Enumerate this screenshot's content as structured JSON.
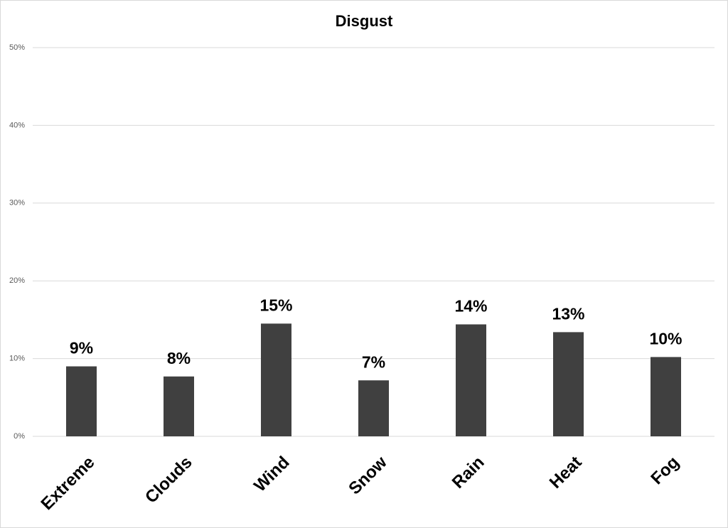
{
  "chart_data": {
    "type": "bar",
    "title": "Disgust",
    "categories": [
      "Extreme",
      "Clouds",
      "Wind",
      "Snow",
      "Rain",
      "Heat",
      "Fog"
    ],
    "values": [
      9.0,
      7.7,
      14.5,
      7.2,
      14.4,
      13.4,
      10.2
    ],
    "value_labels": [
      "9%",
      "8%",
      "15%",
      "7%",
      "14%",
      "13%",
      "10%"
    ],
    "color": "#404040",
    "ylim": [
      0,
      50
    ],
    "yticks": [
      {
        "value": 0,
        "label": "0%"
      },
      {
        "value": 10,
        "label": "10%"
      },
      {
        "value": 20,
        "label": "20%"
      },
      {
        "value": 30,
        "label": "30%"
      },
      {
        "value": 40,
        "label": "40%"
      },
      {
        "value": 50,
        "label": "50%"
      }
    ],
    "grid": true
  }
}
